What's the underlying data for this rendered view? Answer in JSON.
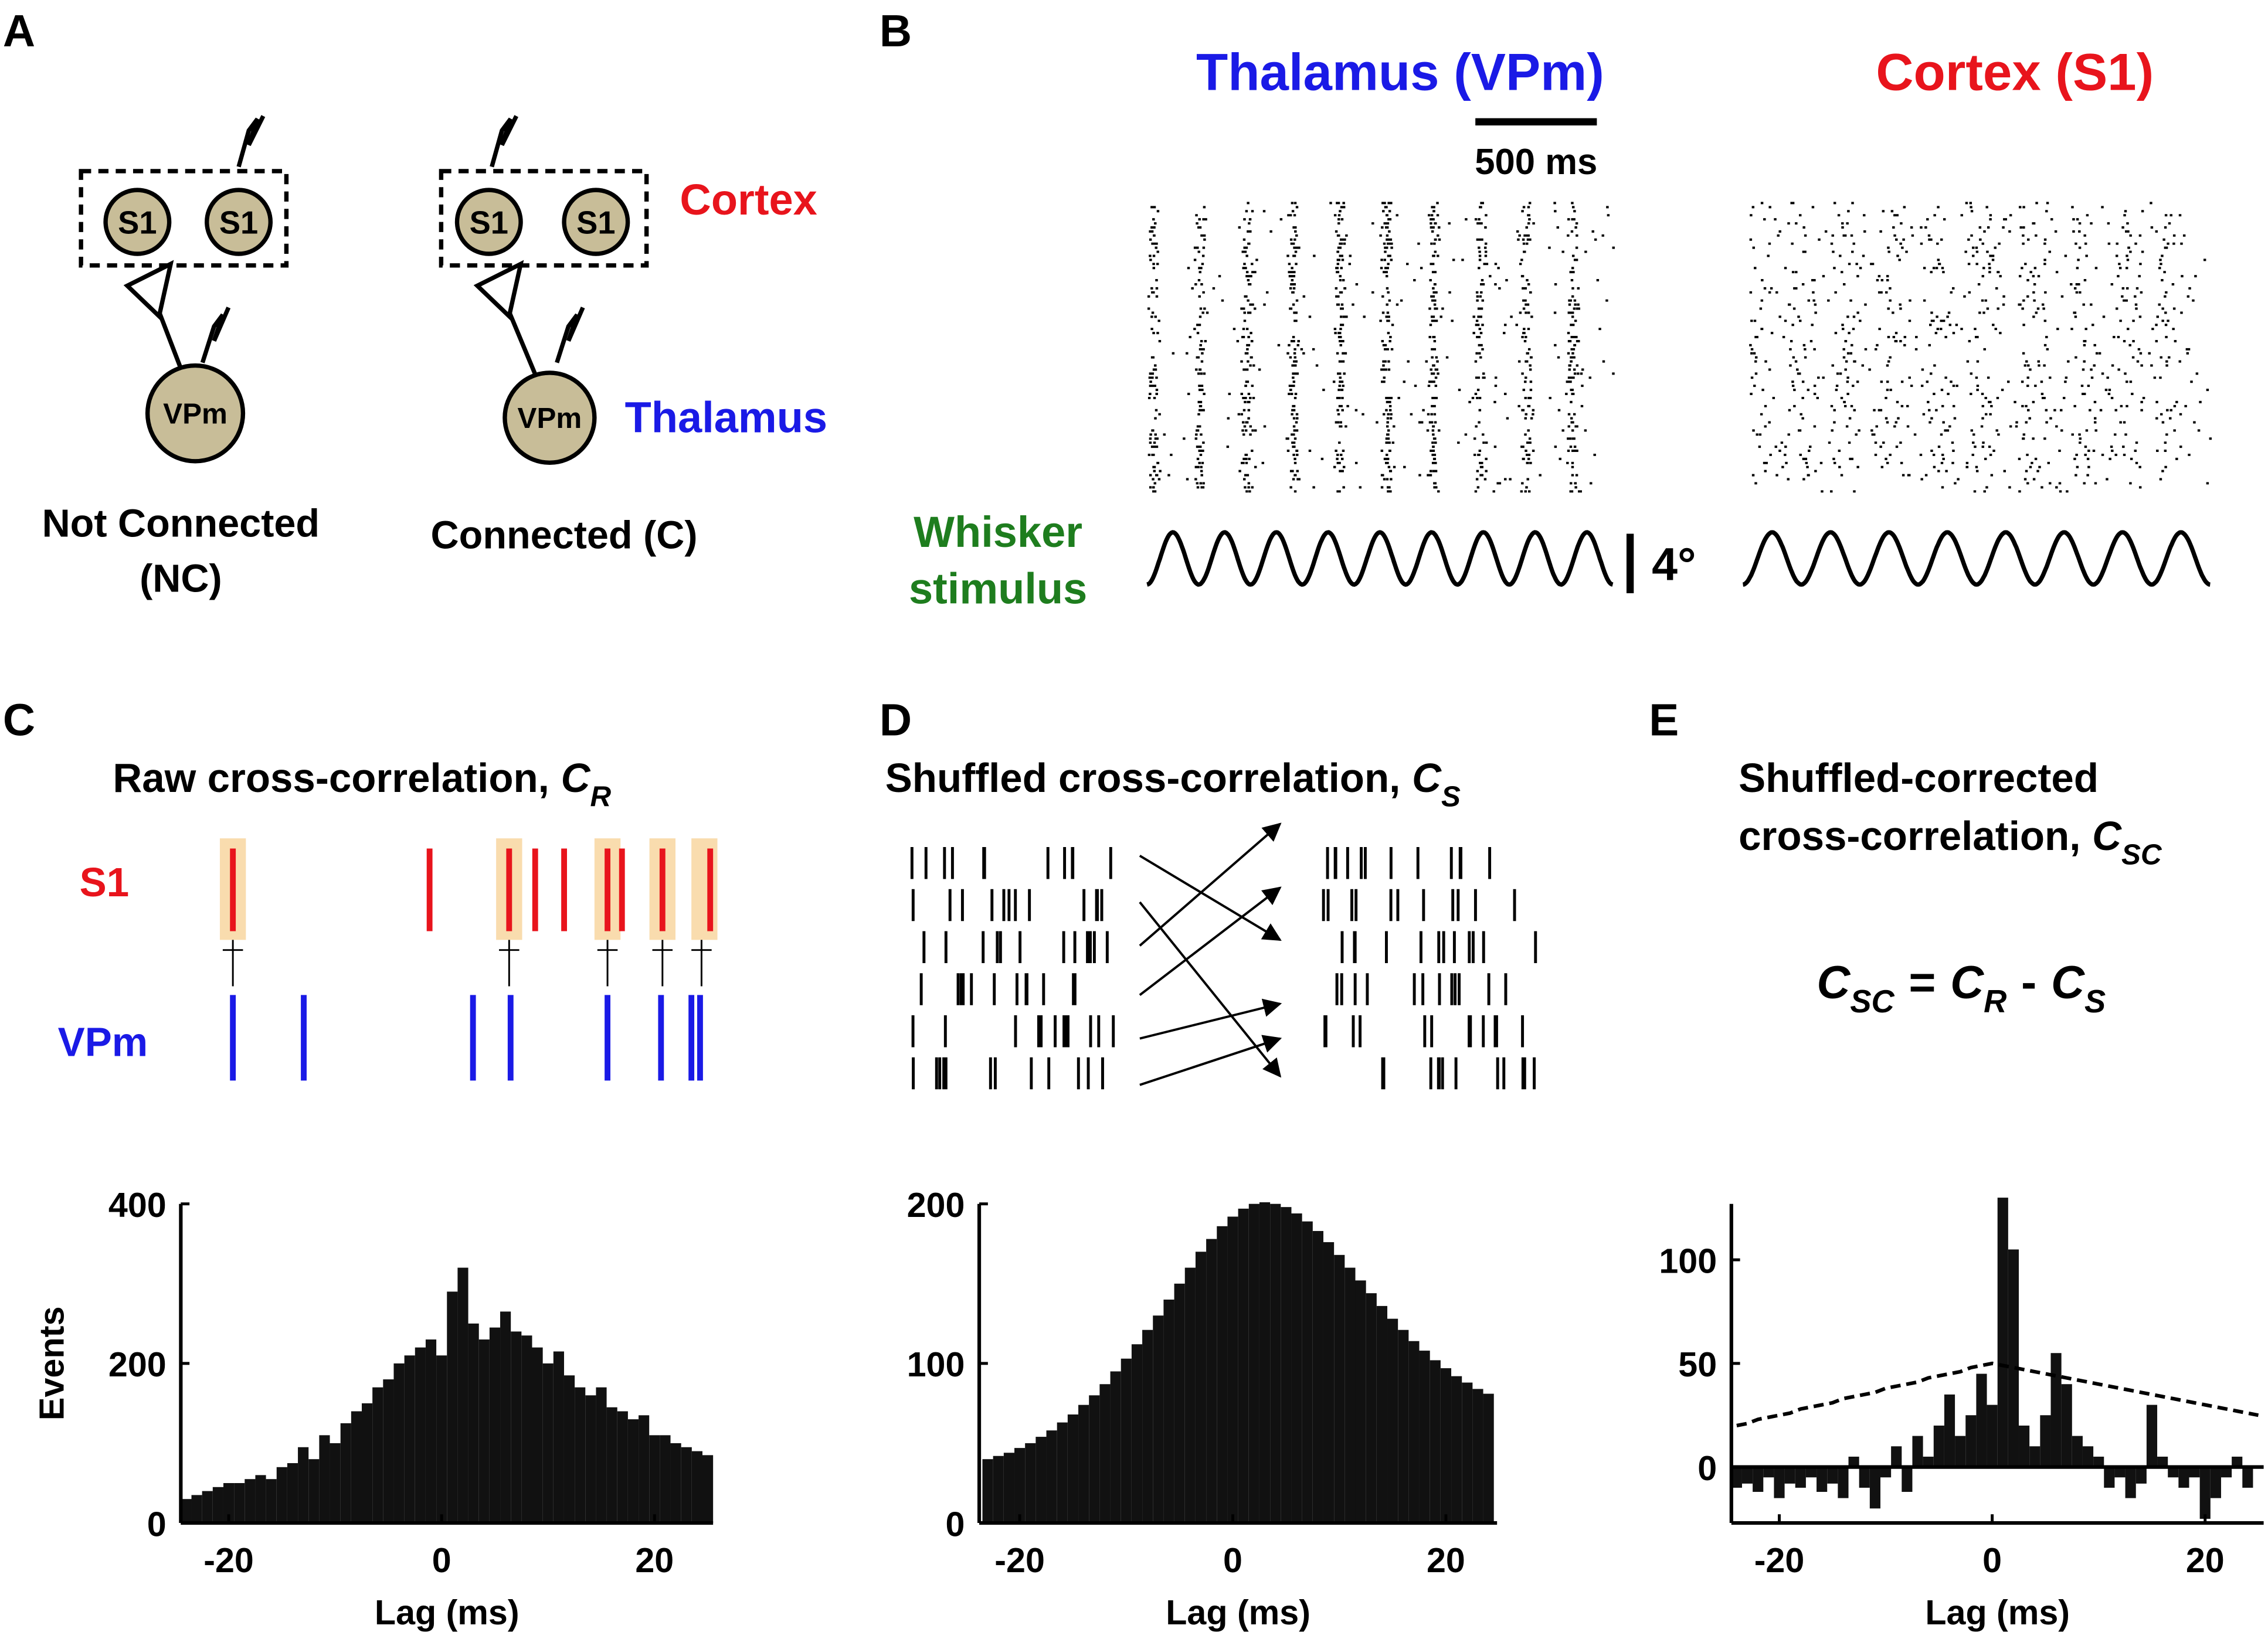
{
  "panels": {
    "a": {
      "letter": "A",
      "cortex": "Cortex",
      "thalamus": "Thalamus",
      "nc": {
        "s1_left": "S1",
        "s1_right": "S1",
        "vpm": "VPm",
        "label_line1": "Not Connected",
        "label_line2": "(NC)"
      },
      "c": {
        "s1_left": "S1",
        "s1_right": "S1",
        "vpm": "VPm",
        "label": "Connected (C)"
      }
    },
    "b": {
      "letter": "B",
      "thalamus_title": "Thalamus (VPm)",
      "cortex_title": "Cortex (S1)",
      "scale_time": "500 ms",
      "stimulus_line1": "Whisker",
      "stimulus_line2": "stimulus",
      "scale_angle": "4°"
    },
    "c": {
      "letter": "C",
      "title": "Raw cross-correlation,",
      "title_symbol": "C",
      "title_subscript": "R",
      "s1": "S1",
      "vpm": "VPm"
    },
    "d": {
      "letter": "D",
      "title": "Shuffled cross-correlation,",
      "title_symbol": "C",
      "title_subscript": "S"
    },
    "e": {
      "letter": "E",
      "title_line1": "Shuffled-corrected",
      "title_line2": "cross-correlation,",
      "title_symbol": "C",
      "title_subscript": "SC",
      "equation": [
        "C",
        "SC",
        "=",
        "C",
        "R",
        "-",
        "C",
        "S"
      ]
    }
  },
  "chart_data": [
    {
      "type": "histogram",
      "xlabel": "Lag (ms)",
      "ylabel": "Events",
      "color": "#111111",
      "bins": [
        -24.5,
        -23.5,
        -22.5,
        -21.5,
        -20.5,
        -19.5,
        -18.5,
        -17.5,
        -16.5,
        -15.5,
        -14.5,
        -13.5,
        -12.5,
        -11.5,
        -10.5,
        -9.5,
        -8.5,
        -7.5,
        -6.5,
        -5.5,
        -4.5,
        -3.5,
        -2.5,
        -1.5,
        -0.5,
        0.5,
        1.5,
        2.5,
        3.5,
        4.5,
        5.5,
        6.5,
        7.5,
        8.5,
        9.5,
        10.5,
        11.5,
        12.5,
        13.5,
        14.5,
        15.5,
        16.5,
        17.5,
        18.5,
        19.5,
        20.5,
        21.5,
        22.5,
        23.5,
        24.5,
        25.5
      ],
      "values": [
        30,
        35,
        40,
        45,
        50,
        50,
        55,
        60,
        55,
        70,
        75,
        95,
        80,
        110,
        100,
        125,
        140,
        150,
        170,
        180,
        200,
        210,
        220,
        230,
        210,
        290,
        320,
        250,
        230,
        245,
        265,
        240,
        235,
        220,
        200,
        215,
        185,
        170,
        160,
        170,
        145,
        140,
        130,
        135,
        110,
        110,
        100,
        95,
        90,
        85
      ],
      "xlim": [
        -24.5,
        25.5
      ],
      "ylim": [
        0,
        400
      ],
      "xticks": [
        -20,
        0,
        20
      ],
      "yticks": [
        0,
        200,
        400
      ]
    },
    {
      "type": "histogram",
      "xlabel": "Lag (ms)",
      "color": "#111111",
      "bins": [
        -23.5,
        -22.5,
        -21.5,
        -20.5,
        -19.5,
        -18.5,
        -17.5,
        -16.5,
        -15.5,
        -14.5,
        -13.5,
        -12.5,
        -11.5,
        -10.5,
        -9.5,
        -8.5,
        -7.5,
        -6.5,
        -5.5,
        -4.5,
        -3.5,
        -2.5,
        -1.5,
        -0.5,
        0.5,
        1.5,
        2.5,
        3.5,
        4.5,
        5.5,
        6.5,
        7.5,
        8.5,
        9.5,
        10.5,
        11.5,
        12.5,
        13.5,
        14.5,
        15.5,
        16.5,
        17.5,
        18.5,
        19.5,
        20.5,
        21.5,
        22.5,
        23.5,
        24.5
      ],
      "values": [
        40,
        42,
        44,
        47,
        50,
        54,
        58,
        63,
        68,
        74,
        80,
        87,
        95,
        103,
        112,
        121,
        130,
        140,
        150,
        160,
        170,
        178,
        186,
        192,
        197,
        200,
        201,
        200,
        198,
        194,
        189,
        183,
        176,
        168,
        160,
        152,
        144,
        136,
        128,
        121,
        114,
        108,
        102,
        97,
        92,
        88,
        84,
        81
      ],
      "xlim": [
        -23.8,
        24.8
      ],
      "ylim": [
        0,
        200
      ],
      "xticks": [
        -20,
        0,
        20
      ],
      "yticks": [
        0,
        100,
        200
      ]
    },
    {
      "type": "histogram",
      "xlabel": "Lag (ms)",
      "color": "#111111",
      "bins": [
        -24.5,
        -23.5,
        -22.5,
        -21.5,
        -20.5,
        -19.5,
        -18.5,
        -17.5,
        -16.5,
        -15.5,
        -14.5,
        -13.5,
        -12.5,
        -11.5,
        -10.5,
        -9.5,
        -8.5,
        -7.5,
        -6.5,
        -5.5,
        -4.5,
        -3.5,
        -2.5,
        -1.5,
        -0.5,
        0.5,
        1.5,
        2.5,
        3.5,
        4.5,
        5.5,
        6.5,
        7.5,
        8.5,
        9.5,
        10.5,
        11.5,
        12.5,
        13.5,
        14.5,
        15.5,
        16.5,
        17.5,
        18.5,
        19.5,
        20.5,
        21.5,
        22.5,
        23.5,
        24.5,
        25.5
      ],
      "values": [
        -10,
        -8,
        -12,
        -5,
        -15,
        -8,
        -10,
        -5,
        -12,
        -8,
        -15,
        5,
        -10,
        -20,
        -5,
        10,
        -12,
        15,
        5,
        20,
        35,
        15,
        25,
        45,
        30,
        130,
        105,
        20,
        10,
        25,
        55,
        40,
        15,
        10,
        5,
        -10,
        -5,
        -15,
        -8,
        30,
        5,
        -5,
        -10,
        -5,
        -25,
        -15,
        -5,
        5,
        -10,
        0
      ],
      "threshold": [
        20,
        21,
        23,
        24,
        25,
        26,
        28,
        29,
        30,
        31,
        33,
        34,
        35,
        36,
        38,
        39,
        40,
        41,
        43,
        44,
        45,
        46,
        48,
        49,
        50,
        49,
        48,
        47,
        46,
        45,
        44,
        43,
        42,
        41,
        40,
        39,
        38,
        37,
        36,
        35,
        34,
        33,
        32,
        31,
        30,
        29,
        28,
        27,
        26,
        25
      ],
      "xlim": [
        -24.5,
        25.5
      ],
      "ylim": [
        -27,
        127
      ],
      "xticks": [
        -20,
        0,
        20
      ],
      "yticks": [
        0,
        50,
        100
      ]
    }
  ]
}
